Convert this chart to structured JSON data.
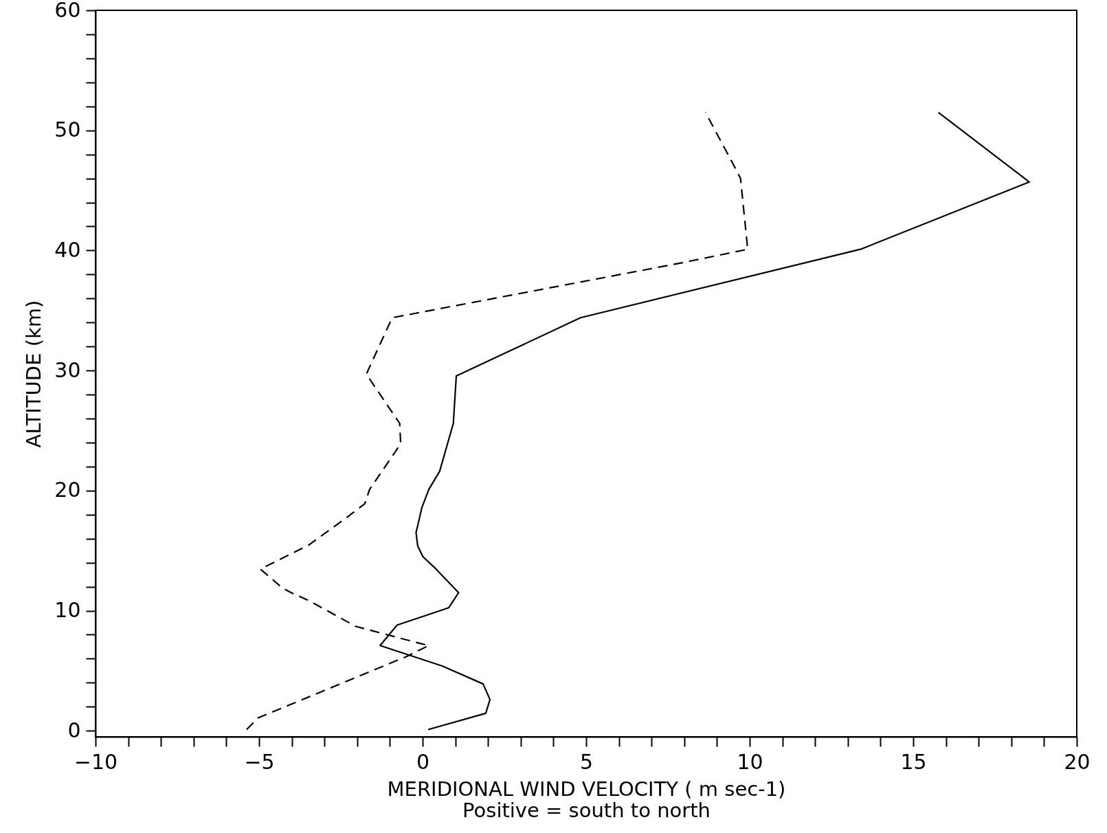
{
  "chart_data": {
    "type": "line",
    "xlabel": "MERIDIONAL WIND VELOCITY ( m sec-1)",
    "ylabel": "ALTITUDE (km)",
    "annotations": [
      "Positive = south to north"
    ],
    "xlim": [
      -10,
      20
    ],
    "ylim": [
      -0.5,
      60
    ],
    "xticks": [
      -10,
      {
        "value": -9,
        "label": null
      },
      {
        "value": -8,
        "label": null
      },
      {
        "value": -7,
        "label": null
      },
      {
        "value": -6,
        "label": null
      },
      -5,
      {
        "value": -4,
        "label": null
      },
      {
        "value": -3,
        "label": null
      },
      {
        "value": -2,
        "label": null
      },
      {
        "value": -1,
        "label": null
      },
      0,
      {
        "value": 1,
        "label": null
      },
      {
        "value": 2,
        "label": null
      },
      {
        "value": 3,
        "label": null
      },
      {
        "value": 4,
        "label": null
      },
      5,
      {
        "value": 6,
        "label": null
      },
      {
        "value": 7,
        "label": null
      },
      {
        "value": 8,
        "label": null
      },
      {
        "value": 9,
        "label": null
      },
      10,
      {
        "value": 11,
        "label": null
      },
      {
        "value": 12,
        "label": null
      },
      {
        "value": 13,
        "label": null
      },
      {
        "value": 14,
        "label": null
      },
      15,
      {
        "value": 16,
        "label": null
      },
      {
        "value": 17,
        "label": null
      },
      {
        "value": 18,
        "label": null
      },
      {
        "value": 19,
        "label": null
      },
      20
    ],
    "yticks": [
      0,
      {
        "value": 2,
        "label": null
      },
      {
        "value": 4,
        "label": null
      },
      {
        "value": 6,
        "label": null
      },
      {
        "value": 8,
        "label": null
      },
      10,
      {
        "value": 12,
        "label": null
      },
      {
        "value": 14,
        "label": null
      },
      {
        "value": 16,
        "label": null
      },
      {
        "value": 18,
        "label": null
      },
      20,
      {
        "value": 22,
        "label": null
      },
      {
        "value": 24,
        "label": null
      },
      {
        "value": 26,
        "label": null
      },
      {
        "value": 28,
        "label": null
      },
      30,
      {
        "value": 32,
        "label": null
      },
      {
        "value": 34,
        "label": null
      },
      {
        "value": 36,
        "label": null
      },
      {
        "value": 38,
        "label": null
      },
      40,
      {
        "value": 42,
        "label": null
      },
      {
        "value": 44,
        "label": null
      },
      {
        "value": 46,
        "label": null
      },
      {
        "value": 48,
        "label": null
      },
      50,
      {
        "value": 52,
        "label": null
      },
      {
        "value": 54,
        "label": null
      },
      {
        "value": 56,
        "label": null
      },
      {
        "value": 58,
        "label": null
      },
      60
    ],
    "grid": false,
    "series": [
      {
        "color": "#000000",
        "line_style": "solid",
        "x": [
          0.17,
          1.93,
          2.06,
          1.85,
          0.6,
          -1.3,
          -0.78,
          0.8,
          1.1,
          0.4,
          0.01,
          -0.15,
          -0.2,
          -0.02,
          0.19,
          0.52,
          0.94,
          1.03,
          4.83,
          13.39,
          18.55,
          15.77
        ],
        "values": [
          0.1,
          1.45,
          2.6,
          3.9,
          5.4,
          7.1,
          8.8,
          10.25,
          11.5,
          13.5,
          14.5,
          15.4,
          16.5,
          18.6,
          20.1,
          21.6,
          25.6,
          29.55,
          34.4,
          40.1,
          45.7,
          51.5
        ]
      },
      {
        "color": "#000000",
        "line_style": "dashed",
        "x": [
          -5.38,
          -5.03,
          -0.48,
          0.19,
          -0.06,
          -2.05,
          -2.68,
          -3.45,
          -3.94,
          -4.26,
          -4.96,
          -3.49,
          -2.3,
          -1.77,
          -1.62,
          -0.67,
          -0.7,
          -1.72,
          -0.93,
          7.98,
          9.94,
          9.72,
          9.57,
          8.65
        ],
        "values": [
          0.1,
          1.07,
          6.2,
          7.1,
          7.26,
          8.7,
          9.65,
          10.8,
          11.4,
          11.84,
          13.46,
          15.45,
          17.8,
          18.9,
          20.1,
          23.9,
          25.6,
          29.7,
          34.4,
          39.0,
          40.1,
          46.0,
          46.8,
          51.5
        ]
      }
    ]
  }
}
